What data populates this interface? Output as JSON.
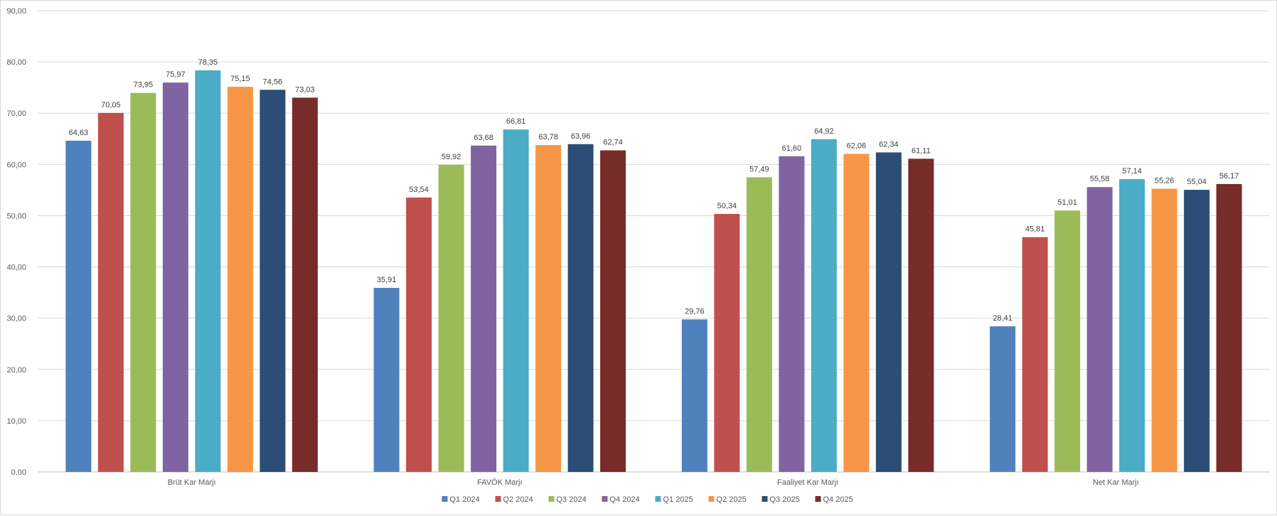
{
  "chart_data": {
    "type": "bar",
    "title": "",
    "xlabel": "",
    "ylabel": "",
    "ylim": [
      0,
      90
    ],
    "ytick_step": 10,
    "ytick_labels": [
      "0,00",
      "10,00",
      "20,00",
      "30,00",
      "40,00",
      "50,00",
      "60,00",
      "70,00",
      "80,00",
      "90,00"
    ],
    "grid": true,
    "legend_position": "bottom",
    "categories": [
      "Brüt Kar Marjı",
      "FAVÖK Marjı",
      "Faaliyet Kar Marjı",
      "Net Kar Marjı"
    ],
    "series": [
      {
        "name": "Q1 2024",
        "color": "#4f81bd",
        "values": [
          64.63,
          35.91,
          29.76,
          28.41
        ],
        "labels": [
          "64,63",
          "35,91",
          "29,76",
          "28,41"
        ]
      },
      {
        "name": "Q2 2024",
        "color": "#c0504d",
        "values": [
          70.05,
          53.54,
          50.34,
          45.81
        ],
        "labels": [
          "70,05",
          "53,54",
          "50,34",
          "45,81"
        ]
      },
      {
        "name": "Q3 2024",
        "color": "#9bbb59",
        "values": [
          73.95,
          59.92,
          57.49,
          51.01
        ],
        "labels": [
          "73,95",
          "59,92",
          "57,49",
          "51,01"
        ]
      },
      {
        "name": "Q4 2024",
        "color": "#8064a2",
        "values": [
          75.97,
          63.68,
          61.6,
          55.58
        ],
        "labels": [
          "75,97",
          "63,68",
          "61,60",
          "55,58"
        ]
      },
      {
        "name": "Q1 2025",
        "color": "#4bacc6",
        "values": [
          78.35,
          66.81,
          64.92,
          57.14
        ],
        "labels": [
          "78,35",
          "66,81",
          "64,92",
          "57,14"
        ]
      },
      {
        "name": "Q2 2025",
        "color": "#f79646",
        "values": [
          75.15,
          63.78,
          62.06,
          55.26
        ],
        "labels": [
          "75,15",
          "63,78",
          "62,06",
          "55,26"
        ]
      },
      {
        "name": "Q3 2025",
        "color": "#2c4d75",
        "values": [
          74.56,
          63.96,
          62.34,
          55.04
        ],
        "labels": [
          "74,56",
          "63,96",
          "62,34",
          "55,04"
        ]
      },
      {
        "name": "Q4 2025",
        "color": "#772c2a",
        "values": [
          73.03,
          62.74,
          61.11,
          56.17
        ],
        "labels": [
          "73,03",
          "62,74",
          "61,11",
          "56,17"
        ]
      }
    ]
  }
}
